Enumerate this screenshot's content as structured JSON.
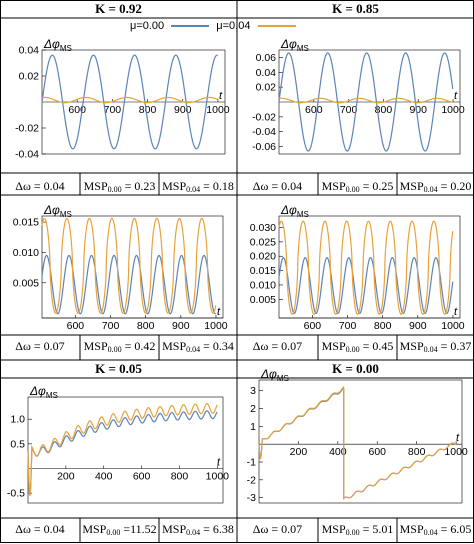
{
  "legend": [
    {
      "label": "μ=0.00",
      "color": "#5b84b8"
    },
    {
      "label": "μ=0.04",
      "color": "#e8a23a"
    }
  ],
  "ylabel_main": "Δφ",
  "ylabel_sub": "MS",
  "xlabel": "t",
  "headers": [
    "K = 0.92",
    "K = 0.85",
    "K = 0.05",
    "K = 0.00"
  ],
  "captions": [
    [
      "Δω = 0.04",
      "MSP",
      "0.00",
      " = 0.23",
      "MSP",
      "0.04",
      " = 0.18"
    ],
    [
      "Δω = 0.04",
      "MSP",
      "0.00",
      " = 0.25",
      "MSP",
      "0.04",
      " = 0.20"
    ],
    [
      "Δω = 0.07",
      "MSP",
      "0.00",
      " = 0.42",
      "MSP",
      "0.04",
      " = 0.34"
    ],
    [
      "Δω = 0.07",
      "MSP",
      "0.00",
      " = 0.45",
      "MSP",
      "0.04",
      " = 0.37"
    ],
    [
      "Δω = 0.04",
      "MSP",
      "0.00",
      " =11.52",
      "MSP",
      "0.04",
      " = 6.38"
    ],
    [
      "Δω = 0.07",
      "MSP",
      "0.00",
      " = 5.01",
      "MSP",
      "0.04",
      " = 6.05"
    ]
  ],
  "chart_data": [
    {
      "type": "line",
      "panel": "K = 0.92",
      "ylim": [
        -0.04,
        0.04
      ],
      "xlim": [
        500,
        1020
      ],
      "yticks": [
        -0.04,
        -0.02,
        0.02,
        0.04
      ],
      "ytick_labels": [
        "-0.04",
        "-0.02",
        "0.02",
        "0.04"
      ],
      "xticks": [
        600,
        700,
        800,
        900,
        1000
      ],
      "xaxis_at": 0,
      "series": [
        {
          "name": "μ=0.00",
          "kind": "sine",
          "amp": 0.036,
          "offset": 0,
          "period": 117,
          "phase": 0
        },
        {
          "name": "μ=0.04",
          "kind": "sine",
          "amp": 0.002,
          "offset": 0.0015,
          "period": 117,
          "phase": 1.2
        }
      ]
    },
    {
      "type": "line",
      "panel": "K = 0.85",
      "ylim": [
        -0.07,
        0.07
      ],
      "xlim": [
        500,
        1020
      ],
      "yticks": [
        -0.06,
        -0.04,
        -0.02,
        0.02,
        0.04,
        0.06
      ],
      "ytick_labels": [
        "-0.06",
        "-0.04",
        "-0.02",
        "0.02",
        "0.04",
        "0.06"
      ],
      "xticks": [
        600,
        700,
        800,
        900,
        1000
      ],
      "xaxis_at": 0,
      "series": [
        {
          "name": "μ=0.00",
          "kind": "sine",
          "amp": 0.066,
          "offset": 0,
          "period": 112,
          "phase": 0
        },
        {
          "name": "μ=0.04",
          "kind": "sine",
          "amp": 0.003,
          "offset": 0.002,
          "period": 112,
          "phase": 1.2
        }
      ]
    },
    {
      "type": "line",
      "panel": "Δω = 0.07 (left)",
      "ylim": [
        -0.0008,
        0.016
      ],
      "xlim": [
        505,
        1020
      ],
      "yticks": [
        0.005,
        0.01,
        0.015
      ],
      "ytick_labels": [
        "0.005",
        "0.010",
        "0.015"
      ],
      "xticks": [
        600,
        700,
        800,
        900,
        1000
      ],
      "xaxis_at": -0.0008,
      "series": [
        {
          "name": "μ=0.00",
          "kind": "sine",
          "amp": 0.0048,
          "offset": 0.0047,
          "period": 64,
          "phase": 0.3
        },
        {
          "name": "μ=0.04",
          "kind": "spike",
          "amp": 0.0078,
          "offset": 0.0078,
          "period": 64,
          "phase": 0.9
        }
      ]
    },
    {
      "type": "line",
      "panel": "Δω = 0.07 (right)",
      "ylim": [
        -0.0015,
        0.034
      ],
      "xlim": [
        505,
        1020
      ],
      "yticks": [
        0.005,
        0.01,
        0.015,
        0.02,
        0.025,
        0.03
      ],
      "ytick_labels": [
        "0.005",
        "0.010",
        "0.015",
        "0.020",
        "0.025",
        "0.030"
      ],
      "xticks": [
        600,
        700,
        800,
        900,
        1000
      ],
      "xaxis_at": -0.0015,
      "series": [
        {
          "name": "μ=0.00",
          "kind": "sine",
          "amp": 0.0097,
          "offset": 0.0098,
          "period": 62,
          "phase": 0.3
        },
        {
          "name": "μ=0.04",
          "kind": "spike",
          "amp": 0.0162,
          "offset": 0.016,
          "period": 62,
          "phase": 0.9
        }
      ]
    },
    {
      "type": "line",
      "panel": "K = 0.05",
      "ylim": [
        -0.7,
        1.45
      ],
      "xlim": [
        0,
        1030
      ],
      "yticks": [
        -0.5,
        0.5,
        1.0
      ],
      "ytick_labels": [
        "-0.5",
        "0.5",
        "1.0"
      ],
      "xticks": [
        200,
        400,
        600,
        800,
        1000
      ],
      "xaxis_at": 0,
      "series": [
        {
          "name": "μ=0.00",
          "kind": "drift",
          "end": 1.12,
          "osc": 0.08,
          "period": 62
        },
        {
          "name": "μ=0.04",
          "kind": "drift",
          "end": 1.25,
          "osc": 0.1,
          "period": 62
        }
      ]
    },
    {
      "type": "line",
      "panel": "K = 0.00",
      "ylim": [
        -3.3,
        3.6
      ],
      "xlim": [
        0,
        1030
      ],
      "yticks": [
        -3,
        -2,
        -1,
        1,
        2,
        3
      ],
      "ytick_labels": [
        "-3",
        "-2",
        "-1",
        "1",
        "2",
        "3"
      ],
      "xticks": [
        200,
        400,
        600,
        800,
        1000
      ],
      "xaxis_at": 0,
      "series": [
        {
          "name": "μ=0.00",
          "kind": "ramp",
          "wrap_at": 430,
          "end": 3.1
        },
        {
          "name": "μ=0.04",
          "kind": "ramp",
          "wrap_at": 430,
          "end": 3.15
        }
      ]
    }
  ]
}
